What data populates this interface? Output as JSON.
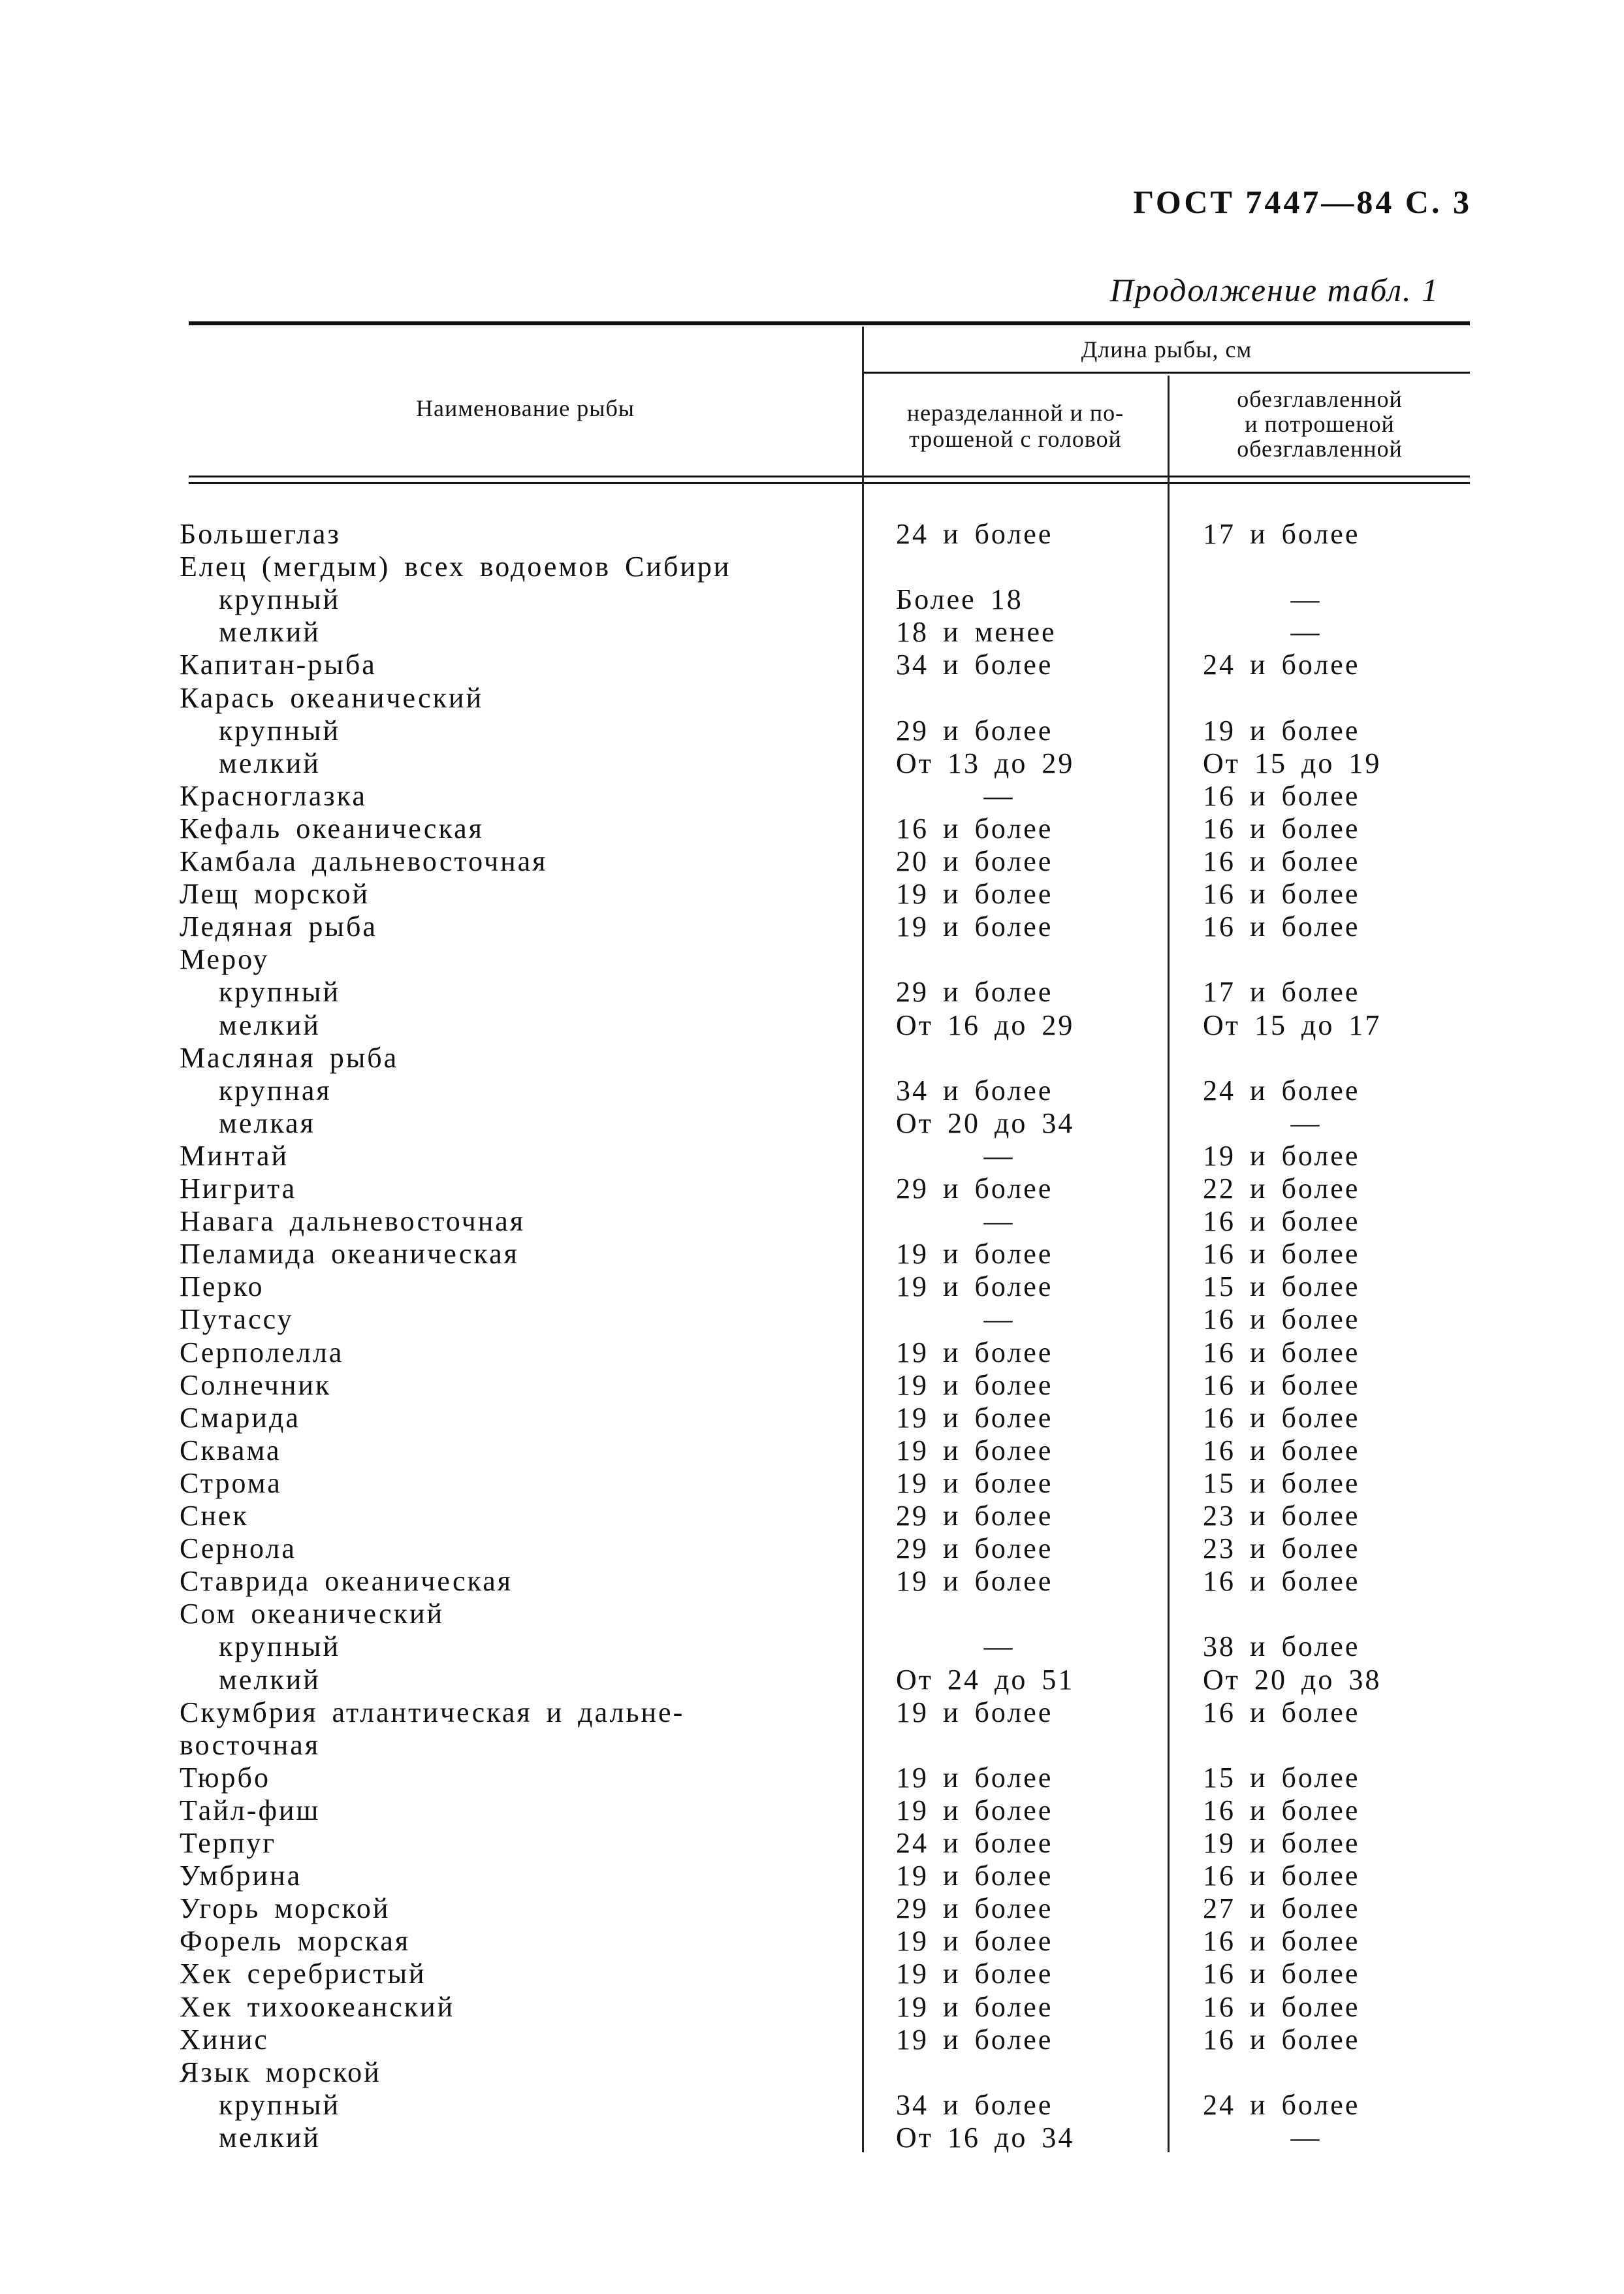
{
  "page_header": "ГОСТ 7447—84 С. 3",
  "continuation": "Продолжение табл. 1",
  "table": {
    "headers": {
      "name": "Наименование рыбы",
      "group": "Длина рыбы, см",
      "col1": "неразделанной и по-трошеной с головой",
      "col1_lines": [
        "неразделанной и по-",
        "трошеной с головой"
      ],
      "col2_lines": [
        "обезглавленной",
        "и потрошеной",
        "обезглавленной"
      ]
    },
    "rows": [
      {
        "name": "Большеглаз",
        "c1": "24 и более",
        "c2": "17 и более"
      },
      {
        "name": "Елец (мегдым) всех водоемов Сибири",
        "c1": "",
        "c2": ""
      },
      {
        "name": "крупный",
        "sub": true,
        "c1": "Более 18",
        "c2": "—"
      },
      {
        "name": "мелкий",
        "sub": true,
        "c1": "18 и менее",
        "c2": "—"
      },
      {
        "name": "Капитан-рыба",
        "c1": "34 и более",
        "c2": "24 и более"
      },
      {
        "name": "Карась океанический",
        "c1": "",
        "c2": ""
      },
      {
        "name": "крупный",
        "sub": true,
        "c1": "29 и более",
        "c2": "19 и более"
      },
      {
        "name": "мелкий",
        "sub": true,
        "c1": "От 13 до 29",
        "c2": "От 15 до 19"
      },
      {
        "name": "Красноглазка",
        "c1": "—",
        "c2": "16 и более"
      },
      {
        "name": "Кефаль океаническая",
        "c1": "16 и более",
        "c2": "16 и более"
      },
      {
        "name": "Камбала дальневосточная",
        "c1": "20 и более",
        "c2": "16 и более"
      },
      {
        "name": "Лещ морской",
        "c1": "19 и более",
        "c2": "16 и более"
      },
      {
        "name": "Ледяная рыба",
        "c1": "19 и более",
        "c2": "16 и более"
      },
      {
        "name": "Мероу",
        "c1": "",
        "c2": ""
      },
      {
        "name": "крупный",
        "sub": true,
        "c1": "29 и более",
        "c2": "17 и более"
      },
      {
        "name": "мелкий",
        "sub": true,
        "c1": "От 16 до 29",
        "c2": "От 15 до 17"
      },
      {
        "name": "Масляная рыба",
        "c1": "",
        "c2": ""
      },
      {
        "name": "крупная",
        "sub": true,
        "c1": "34 и более",
        "c2": "24 и более"
      },
      {
        "name": "мелкая",
        "sub": true,
        "c1": "От 20 до 34",
        "c2": "—"
      },
      {
        "name": "Минтай",
        "c1": "—",
        "c2": "19 и более"
      },
      {
        "name": "Нигрита",
        "c1": "29 и более",
        "c2": "22 и более"
      },
      {
        "name": "Навага дальневосточная",
        "c1": "—",
        "c2": "16 и более"
      },
      {
        "name": "Пеламида океаническая",
        "c1": "19 и более",
        "c2": "16 и более"
      },
      {
        "name": "Перко",
        "c1": "19 и более",
        "c2": "15 и более"
      },
      {
        "name": "Путассу",
        "c1": "—",
        "c2": "16 и более"
      },
      {
        "name": "Серполелла",
        "c1": "19 и более",
        "c2": "16 и более"
      },
      {
        "name": "Солнечник",
        "c1": "19 и более",
        "c2": "16 и более"
      },
      {
        "name": "Смарида",
        "c1": "19 и более",
        "c2": "16 и более"
      },
      {
        "name": "Сквама",
        "c1": "19 и более",
        "c2": "16 и более"
      },
      {
        "name": "Строма",
        "c1": "19 и более",
        "c2": "15 и более"
      },
      {
        "name": "Снек",
        "c1": "29 и более",
        "c2": "23 и более"
      },
      {
        "name": "Сернола",
        "c1": "29 и более",
        "c2": "23 и более"
      },
      {
        "name": "Ставрида океаническая",
        "c1": "19 и более",
        "c2": "16 и более"
      },
      {
        "name": "Сом океанический",
        "c1": "",
        "c2": ""
      },
      {
        "name": "крупный",
        "sub": true,
        "c1": "—",
        "c2": "38 и более"
      },
      {
        "name": "мелкий",
        "sub": true,
        "c1": "От 24 до 51",
        "c2": "От 20 до 38"
      },
      {
        "name": "Скумбрия атлантическая и дальне-",
        "c1": "19 и более",
        "c2": "16 и более"
      },
      {
        "name": "восточная",
        "c1": "",
        "c2": ""
      },
      {
        "name": "Тюрбо",
        "c1": "19 и более",
        "c2": "15 и более"
      },
      {
        "name": "Тайл-фиш",
        "c1": "19 и более",
        "c2": "16 и более"
      },
      {
        "name": "Терпуг",
        "c1": "24 и более",
        "c2": "19 и более"
      },
      {
        "name": "Умбрина",
        "c1": "19 и более",
        "c2": "16 и более"
      },
      {
        "name": "Угорь морской",
        "c1": "29 и более",
        "c2": "27 и более"
      },
      {
        "name": "Форель морская",
        "c1": "19 и более",
        "c2": "16 и более"
      },
      {
        "name": "Хек серебристый",
        "c1": "19 и более",
        "c2": "16 и более"
      },
      {
        "name": "Хек тихоокеанский",
        "c1": "19 и более",
        "c2": "16 и более"
      },
      {
        "name": "Хинис",
        "c1": "19 и более",
        "c2": "16 и более"
      },
      {
        "name": "Язык морской",
        "c1": "",
        "c2": ""
      },
      {
        "name": "крупный",
        "sub": true,
        "c1": "34 и более",
        "c2": "24 и более"
      },
      {
        "name": "мелкий",
        "sub": true,
        "c1": "От 16 до 34",
        "c2": "—"
      }
    ]
  }
}
